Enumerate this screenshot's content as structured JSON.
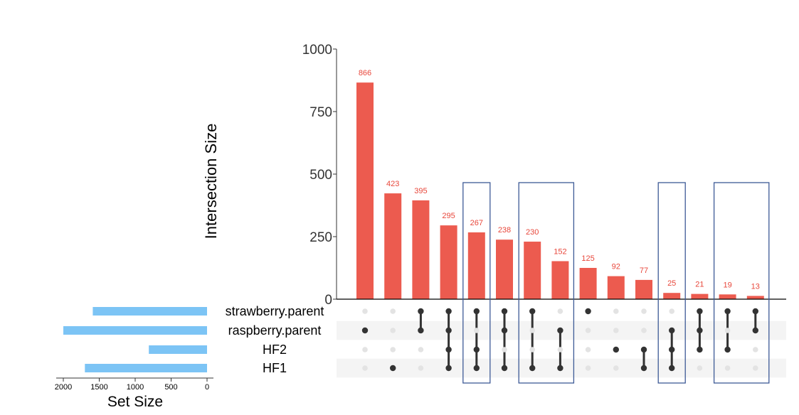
{
  "chart_data": {
    "type": "bar",
    "ylabel": "Intersection Size",
    "ylim": [
      0,
      1000
    ],
    "yticks": [
      0,
      250,
      500,
      750,
      1000
    ],
    "values": [
      866,
      423,
      395,
      295,
      267,
      238,
      230,
      152,
      125,
      92,
      77,
      25,
      21,
      19,
      13
    ],
    "sets": [
      "strawberry.parent",
      "raspberry.parent",
      "HF2",
      "HF1"
    ],
    "intersections": [
      [
        "raspberry.parent"
      ],
      [
        "HF1"
      ],
      [
        "strawberry.parent",
        "raspberry.parent"
      ],
      [
        "strawberry.parent",
        "raspberry.parent",
        "HF2",
        "HF1"
      ],
      [
        "strawberry.parent",
        "HF2",
        "HF1"
      ],
      [
        "strawberry.parent",
        "raspberry.parent",
        "HF1"
      ],
      [
        "strawberry.parent",
        "HF1"
      ],
      [
        "raspberry.parent",
        "HF1"
      ],
      [
        "strawberry.parent"
      ],
      [
        "HF2"
      ],
      [
        "HF2",
        "HF1"
      ],
      [
        "raspberry.parent",
        "HF2",
        "HF1"
      ],
      [
        "strawberry.parent",
        "raspberry.parent",
        "HF2"
      ],
      [
        "strawberry.parent",
        "HF2"
      ],
      [
        "strawberry.parent",
        "raspberry.parent"
      ]
    ],
    "highlighted_groups": [
      [
        4,
        4
      ],
      [
        6,
        7
      ],
      [
        11,
        11
      ],
      [
        13,
        14
      ]
    ],
    "set_size": {
      "xlabel": "Set Size",
      "ticks": [
        2000,
        1500,
        1000,
        500,
        0
      ],
      "values": [
        1590,
        2000,
        810,
        1700
      ]
    },
    "colors": {
      "bar": "#ec5b4f",
      "label": "#e8473b",
      "set_bar": "#7cc4f5",
      "dot_active": "#333333",
      "dot_inactive": "#e3e3e3",
      "stripe": "#f4f4f4",
      "highlight": "#3d5a96"
    }
  }
}
